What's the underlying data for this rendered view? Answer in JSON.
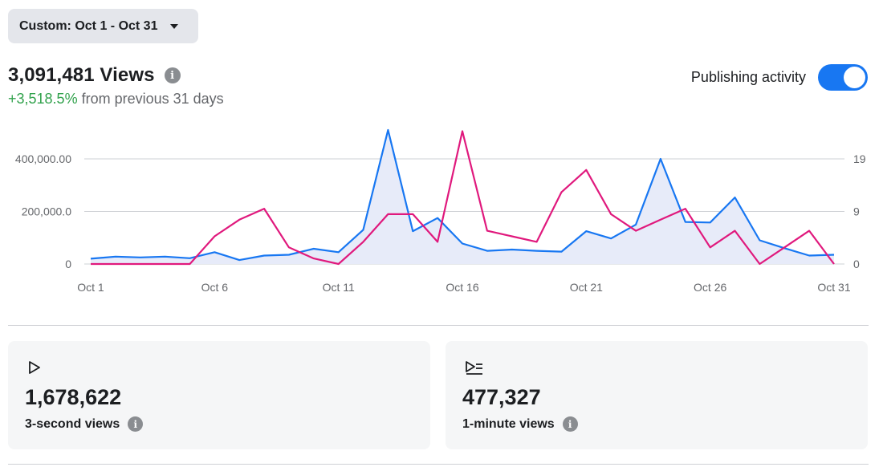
{
  "date_range": {
    "label": "Custom: Oct 1 - Oct 31"
  },
  "summary": {
    "views_value": "3,091,481 Views",
    "change_pct": "+3,518.5%",
    "change_text": "from previous 31 days"
  },
  "publishing": {
    "label": "Publishing activity",
    "enabled": true
  },
  "chart_data": {
    "type": "line",
    "x": [
      "Oct 1",
      "Oct 2",
      "Oct 3",
      "Oct 4",
      "Oct 5",
      "Oct 6",
      "Oct 7",
      "Oct 8",
      "Oct 9",
      "Oct 10",
      "Oct 11",
      "Oct 12",
      "Oct 13",
      "Oct 14",
      "Oct 15",
      "Oct 16",
      "Oct 17",
      "Oct 18",
      "Oct 19",
      "Oct 20",
      "Oct 21",
      "Oct 22",
      "Oct 23",
      "Oct 24",
      "Oct 25",
      "Oct 26",
      "Oct 27",
      "Oct 28",
      "Oct 29",
      "Oct 30",
      "Oct 31"
    ],
    "x_tick_labels": [
      "Oct 1",
      "Oct 6",
      "Oct 11",
      "Oct 16",
      "Oct 21",
      "Oct 26",
      "Oct 31"
    ],
    "left_ticks": [
      "400,000.00",
      "200,000.0",
      "0"
    ],
    "right_ticks": [
      "19",
      "9",
      "0"
    ],
    "ylim_left": [
      0,
      400000
    ],
    "ylim_right": [
      0,
      19
    ],
    "series": [
      {
        "axis": "left",
        "color": "#1877f2",
        "fill": "#e7ebf9",
        "values": [
          20000,
          28000,
          25000,
          28000,
          22000,
          45000,
          15000,
          32000,
          35000,
          58000,
          45000,
          130000,
          510000,
          125000,
          175000,
          78000,
          50000,
          55000,
          50000,
          47000,
          125000,
          97000,
          150000,
          400000,
          160000,
          158000,
          253000,
          90000,
          60000,
          32000,
          35000
        ]
      },
      {
        "axis": "right",
        "color": "#e0197d",
        "values": [
          0,
          0,
          0,
          0,
          0,
          5,
          8,
          10,
          3,
          1,
          0,
          4,
          9,
          9,
          4,
          24,
          6,
          5,
          4,
          13,
          17,
          9,
          6,
          8,
          10,
          3,
          6,
          0,
          3,
          6,
          0
        ]
      }
    ]
  },
  "metrics": [
    {
      "icon": "play-icon",
      "value": "1,678,622",
      "label": "3-second views"
    },
    {
      "icon": "play-list-icon",
      "value": "477,327",
      "label": "1-minute views"
    }
  ]
}
